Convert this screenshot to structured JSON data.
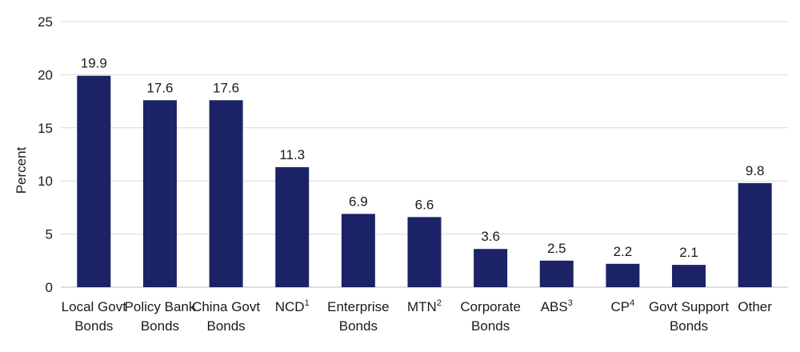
{
  "chart_data": {
    "type": "bar",
    "ylabel": "Percent",
    "ylim": [
      0,
      25
    ],
    "yticks": [
      0,
      5,
      10,
      15,
      20,
      25
    ],
    "grid": true,
    "bar_color": "#1b2366",
    "grid_color": "#d9d9d9",
    "categories": [
      {
        "lines": [
          "Local Govt",
          "Bonds"
        ],
        "sup": ""
      },
      {
        "lines": [
          "Policy Bank",
          "Bonds"
        ],
        "sup": ""
      },
      {
        "lines": [
          "China Govt",
          "Bonds"
        ],
        "sup": ""
      },
      {
        "lines": [
          "NCD"
        ],
        "sup": "1"
      },
      {
        "lines": [
          "Enterprise",
          "Bonds"
        ],
        "sup": ""
      },
      {
        "lines": [
          "MTN"
        ],
        "sup": "2"
      },
      {
        "lines": [
          "Corporate",
          "Bonds"
        ],
        "sup": ""
      },
      {
        "lines": [
          "ABS"
        ],
        "sup": "3"
      },
      {
        "lines": [
          "CP"
        ],
        "sup": "4"
      },
      {
        "lines": [
          "Govt Support",
          "Bonds"
        ],
        "sup": ""
      },
      {
        "lines": [
          "Other"
        ],
        "sup": ""
      }
    ],
    "values": [
      19.9,
      17.6,
      17.6,
      11.3,
      6.9,
      6.6,
      3.6,
      2.5,
      2.2,
      2.1,
      9.8
    ],
    "value_labels": [
      "19.9",
      "17.6",
      "17.6",
      "11.3",
      "6.9",
      "6.6",
      "3.6",
      "2.5",
      "2.2",
      "2.1",
      "9.8"
    ]
  }
}
